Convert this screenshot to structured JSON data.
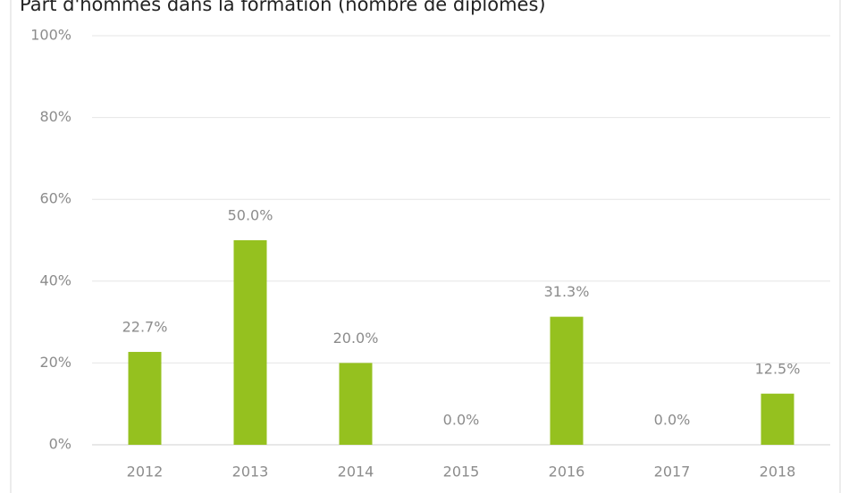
{
  "chart_data": {
    "type": "bar",
    "title": "Part d'hommes dans la formation (nombre de diplômés)",
    "categories": [
      "2012",
      "2013",
      "2014",
      "2015",
      "2016",
      "2017",
      "2018"
    ],
    "values": [
      22.7,
      50.0,
      20.0,
      0.0,
      31.3,
      0.0,
      12.5
    ],
    "value_labels": [
      "22.7%",
      "50.0%",
      "20.0%",
      "0.0%",
      "31.3%",
      "0.0%",
      "12.5%"
    ],
    "color": "#95c11f",
    "ylim": [
      0,
      100
    ],
    "yticks": [
      {
        "value": 0,
        "label": "0%"
      },
      {
        "value": 20,
        "label": "20%"
      },
      {
        "value": 40,
        "label": "40%"
      },
      {
        "value": 60,
        "label": "60%"
      },
      {
        "value": 80,
        "label": "80%"
      },
      {
        "value": 100,
        "label": "100%"
      }
    ],
    "grid": true
  }
}
